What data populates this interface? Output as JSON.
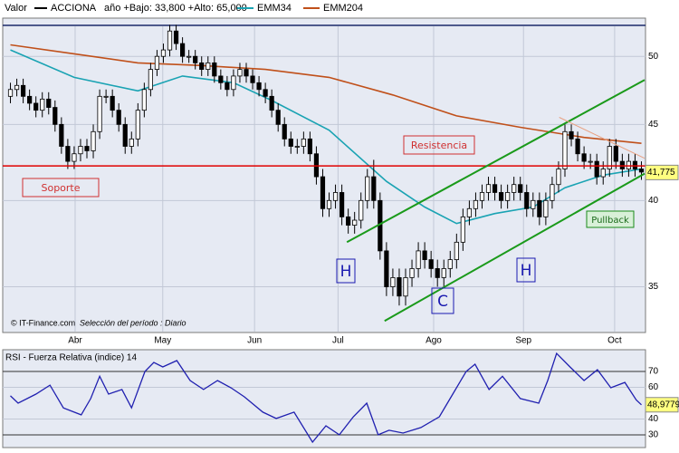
{
  "chart_data": [
    {
      "type": "candlestick",
      "title": "Valor",
      "name": "ACCIONA",
      "subtitle": "año +Bajo: 33,800 +Alto: 65,000",
      "footnote": "© IT-Finance.com",
      "period": "Selección del período : Diario",
      "log_scale": true,
      "grid": true,
      "xlim": [
        -0.5,
        99.5
      ],
      "ylim": [
        32.7,
        52.9
      ],
      "yticks": [
        35,
        40,
        45,
        50
      ],
      "xticks": [
        {
          "value": 10.15,
          "label": "Abr"
        },
        {
          "value": 23.9,
          "label": "May"
        },
        {
          "value": 38.3,
          "label": "Jun"
        },
        {
          "value": 51.4,
          "label": "Jul"
        },
        {
          "value": 66.4,
          "label": "Ago"
        },
        {
          "value": 80.5,
          "label": "Sep"
        },
        {
          "value": 94.8,
          "label": "Oct"
        }
      ],
      "open": [
        47,
        47.5,
        47.8,
        47,
        46.5,
        46,
        46.8,
        46.2,
        45,
        43.5,
        42.5,
        43,
        43.5,
        43.2,
        44.5,
        47,
        47,
        46,
        45,
        43.5,
        44,
        46,
        47.5,
        49,
        50,
        50.5,
        52,
        51,
        50,
        50,
        49.5,
        49,
        49.5,
        48.5,
        48,
        47.5,
        48.5,
        49,
        48.5,
        48,
        47.5,
        47,
        46,
        45,
        44,
        43.5,
        43.5,
        44,
        43,
        41.5,
        39.5,
        40,
        40.5,
        39,
        38.5,
        38.8,
        40,
        41.5,
        40,
        37,
        35,
        35.5,
        34.5,
        35.5,
        36,
        37,
        36.5,
        36,
        35.5,
        36,
        36.5,
        37.5,
        39,
        39.5,
        40,
        40.5,
        41,
        40.5,
        40,
        40.5,
        41,
        40.5,
        39.5,
        40,
        39,
        40,
        41,
        42,
        44.5,
        44,
        43,
        42.5,
        42.5,
        41.5,
        42,
        43.5,
        42.5,
        42,
        42.5,
        42
      ],
      "high": [
        48,
        48.3,
        48.3,
        47.5,
        47,
        47.3,
        47.3,
        46.7,
        45.5,
        44,
        43.5,
        44,
        44,
        45,
        47.5,
        47.5,
        47.5,
        46.5,
        45.5,
        44.5,
        46.5,
        48,
        49.5,
        50.5,
        51,
        52.5,
        52.5,
        51.5,
        50.5,
        50.5,
        50,
        50,
        50,
        49,
        48.5,
        49,
        49.5,
        49.5,
        49,
        48.5,
        48,
        47.5,
        46.5,
        45.5,
        44.5,
        44,
        44.5,
        44.5,
        43.5,
        42,
        40.5,
        41,
        41,
        39.5,
        39.3,
        40.5,
        42,
        42.6,
        40.5,
        37.5,
        36,
        36,
        36,
        36.5,
        37.5,
        37.5,
        37,
        36.5,
        36.5,
        37,
        38,
        39.5,
        40,
        40.5,
        41,
        41.5,
        41.5,
        41,
        41,
        41.5,
        41.5,
        41,
        40.5,
        40.5,
        40.5,
        41.5,
        42.5,
        45,
        45,
        44.5,
        43.5,
        43,
        43,
        42.5,
        44,
        44,
        43,
        43,
        43,
        42.5
      ],
      "low": [
        46.5,
        47,
        46.5,
        46,
        45.5,
        45.5,
        45.7,
        44.5,
        43,
        42,
        42,
        42.5,
        42.7,
        42.7,
        44,
        46.5,
        45.5,
        44.5,
        43,
        43,
        43.5,
        45.5,
        47,
        48.5,
        49.5,
        50,
        50.5,
        49.5,
        49.5,
        49,
        48.5,
        48.5,
        48,
        47.5,
        47,
        47,
        48,
        48,
        47.5,
        47,
        46.5,
        45.5,
        44.5,
        43.5,
        43,
        43,
        43,
        42.5,
        41,
        39,
        39,
        39.5,
        38.5,
        38,
        38,
        38.3,
        39.5,
        39.5,
        36.5,
        34.5,
        34.5,
        34,
        34,
        35,
        35.5,
        36,
        35.5,
        35,
        35,
        35.5,
        36,
        37,
        38.5,
        39,
        39.5,
        40,
        40,
        39.5,
        39.5,
        40,
        40,
        39,
        39,
        38.5,
        38.5,
        39.5,
        40.5,
        41.5,
        43.5,
        42.5,
        42,
        42,
        41,
        41,
        41.5,
        42,
        41.5,
        41.5,
        41.5,
        41.3
      ],
      "close": [
        47.5,
        47.8,
        47,
        46.5,
        46,
        46.8,
        46.2,
        45,
        43.5,
        42.5,
        43,
        43.5,
        43.2,
        44.5,
        47,
        47,
        46,
        45,
        43.5,
        44,
        46,
        47.5,
        49,
        50,
        50.5,
        52,
        51,
        50,
        50,
        49.5,
        49,
        49.5,
        48.5,
        48,
        47.5,
        48.5,
        49,
        48.5,
        48,
        47.5,
        47,
        46,
        45,
        44,
        43.5,
        43.5,
        44,
        43,
        41.5,
        39.5,
        40,
        40.5,
        39,
        38.5,
        38.8,
        40,
        41.5,
        40,
        37,
        35,
        35.5,
        34.5,
        35.5,
        36,
        37,
        36.5,
        36,
        35.5,
        36,
        36.5,
        37.5,
        39,
        39.5,
        40,
        40.5,
        41,
        40.5,
        40,
        40.5,
        41,
        40.5,
        39.5,
        40,
        39,
        40,
        41,
        42,
        44.5,
        44,
        43,
        42.5,
        42.5,
        41.5,
        42,
        43.5,
        42.5,
        42,
        42.5,
        42,
        41.8
      ],
      "up_color": "#ffffff",
      "down_color": "#000000",
      "series": [
        {
          "name": "EMM34",
          "color": "#1aa3b3",
          "x": [
            0,
            10,
            20,
            27,
            35,
            41,
            50,
            59,
            65,
            70,
            76,
            82,
            87,
            93,
            99
          ],
          "values": [
            50.5,
            48.4,
            47.4,
            48.5,
            48.0,
            46.7,
            44.6,
            41.2,
            39.6,
            38.6,
            39.2,
            39.6,
            40.8,
            41.6,
            42.0
          ]
        },
        {
          "name": "EMM204",
          "color": "#c0501a",
          "x": [
            0,
            10,
            20,
            30,
            40,
            50,
            60,
            70,
            80,
            90,
            99
          ],
          "values": [
            50.9,
            50.2,
            49.5,
            49.3,
            49.0,
            48.4,
            47.1,
            45.6,
            44.8,
            44.1,
            43.7
          ]
        }
      ],
      "last_value": {
        "value": 41.775,
        "label": "41,775"
      },
      "hlines": [
        {
          "value": 42.2,
          "color": "#e00000"
        }
      ],
      "trendlines": [
        {
          "x": [
            52.8,
            99.5
          ],
          "values": [
            37.5,
            48.2
          ],
          "color": "#1a9a1a"
        },
        {
          "x": [
            58.7,
            99.5
          ],
          "values": [
            33.2,
            41.7
          ],
          "color": "#1a9a1a"
        },
        {
          "x": [
            86.1,
            99.5
          ],
          "values": [
            45.5,
            42.7
          ],
          "color": "#e8a080"
        }
      ],
      "annotations": [
        "Resistencia",
        "Soporte",
        "H",
        "C",
        "H",
        "Pullback"
      ]
    },
    {
      "type": "line",
      "title": "RSI - Fuerza Relativa (indice) 14",
      "color": "#2020b0",
      "grid": true,
      "xlim": [
        -0.5,
        99.5
      ],
      "ylim": [
        23.1,
        82.6
      ],
      "yticks": [
        30,
        40,
        60,
        70
      ],
      "x": [
        0,
        1.2,
        4,
        6.2,
        8.3,
        11.1,
        12.6,
        14,
        15.4,
        17.5,
        19,
        21.1,
        22.5,
        23.9,
        26.1,
        28.2,
        30.3,
        32.5,
        34.6,
        36.7,
        39.6,
        41.7,
        44.5,
        47.4,
        49.5,
        51.6,
        53.8,
        55.9,
        57.7,
        59.4,
        61.6,
        64.4,
        67.3,
        69.4,
        71.5,
        72.9,
        75.1,
        77.2,
        80,
        82.9,
        84.3,
        85.7,
        87.8,
        90,
        92.1,
        94.2,
        96.4,
        98.2,
        99
      ],
      "values": [
        54.6,
        50,
        55.7,
        61.4,
        47,
        42.6,
        52.9,
        67,
        55.7,
        58.6,
        47,
        70,
        75.7,
        72.9,
        76.9,
        64.3,
        58.6,
        64.3,
        59.7,
        54,
        44.3,
        40.3,
        44.3,
        25.4,
        35.7,
        30,
        41.4,
        50,
        30,
        32.9,
        31.1,
        34.6,
        41.4,
        55.7,
        70,
        74.6,
        58.6,
        67,
        52.9,
        50,
        64.3,
        81.4,
        72.9,
        64.3,
        71.1,
        59.7,
        63.1,
        52,
        48.98
      ],
      "last_value": {
        "value": 48.9779,
        "label": "48,9779"
      }
    }
  ]
}
